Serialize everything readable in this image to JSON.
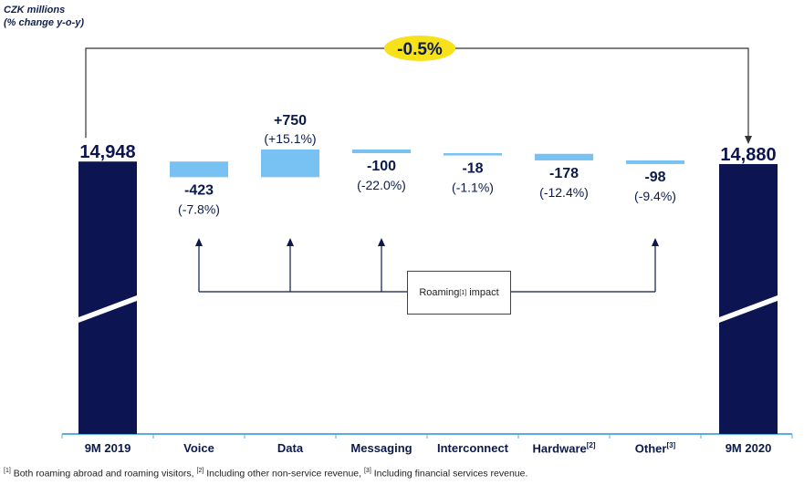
{
  "unit_line1": "CZK millions",
  "unit_line2": "(% change y-o-y)",
  "total_change": "-0.5%",
  "roaming_box": {
    "prefix": "Roaming",
    "sup": "[1]",
    "suffix": " impact"
  },
  "footnote": [
    {
      "sup": "[1]",
      "text": " Both roaming abroad and roaming visitors, "
    },
    {
      "sup": "[2]",
      "text": " Including other non-service revenue, "
    },
    {
      "sup": "[3]",
      "text": " Including financial services revenue."
    }
  ],
  "colors": {
    "total_bar": "#0c1452",
    "delta_bar": "#78c2f3",
    "axis": "#5aaee6",
    "badge": "#f6e11a"
  },
  "chart_data": {
    "type": "bar",
    "subtype": "waterfall",
    "categories": [
      "9M 2019",
      "Voice",
      "Data",
      "Messaging",
      "Interconnect",
      "Hardware",
      "Other"
    ],
    "category_sups": [
      "",
      "",
      "",
      "",
      "",
      "[2]",
      "[3]"
    ],
    "end_category": "9M 2020",
    "start_value": 14948,
    "end_value": 14880,
    "deltas": [
      -423,
      750,
      -100,
      -18,
      -178,
      -98
    ],
    "value_labels": [
      "14,948",
      "-423",
      "+750",
      "-100",
      "-18",
      "-178",
      "-98",
      "14,880"
    ],
    "pct_labels": [
      "",
      "(-7.8%)",
      "(+15.1%)",
      "(-22.0%)",
      "(-1.1%)",
      "(-12.4%)",
      "(-9.4%)",
      ""
    ],
    "roaming_impacted": [
      "Voice",
      "Data",
      "Messaging",
      "Other"
    ],
    "axis_break": true
  }
}
